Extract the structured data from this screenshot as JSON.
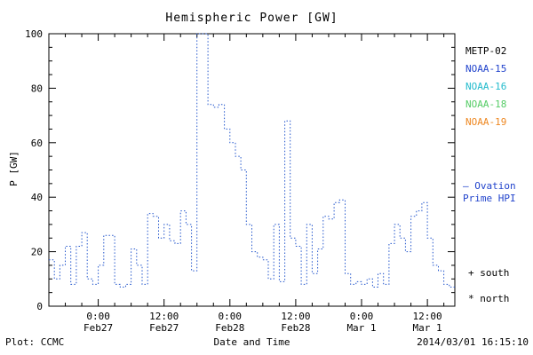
{
  "title": "Hemispheric Power [GW]",
  "axes": {
    "ylabel": "P [GW]",
    "xlabel": "Date and Time",
    "y_ticks": [
      0,
      20,
      40,
      60,
      80,
      100
    ]
  },
  "x_ticks": [
    {
      "hour": 9,
      "time": "0:00",
      "date": "Feb27"
    },
    {
      "hour": 21,
      "time": "12:00",
      "date": "Feb27"
    },
    {
      "hour": 33,
      "time": "0:00",
      "date": "Feb28"
    },
    {
      "hour": 45,
      "time": "12:00",
      "date": "Feb28"
    },
    {
      "hour": 57,
      "time": "0:00",
      "date": "Mar 1"
    },
    {
      "hour": 69,
      "time": "12:00",
      "date": "Mar 1"
    }
  ],
  "legend": {
    "items": [
      {
        "label": "METP-02",
        "color": "#000000"
      },
      {
        "label": "NOAA-15",
        "color": "#2244cc"
      },
      {
        "label": "NOAA-16",
        "color": "#22bbcc"
      },
      {
        "label": "NOAA-18",
        "color": "#55cc66"
      },
      {
        "label": "NOAA-19",
        "color": "#ee8822"
      }
    ]
  },
  "annotations": {
    "ovation_line1": "– Ovation",
    "ovation_line2": "Prime HPI",
    "ovation_color": "#2244cc",
    "south_marker": "+ south",
    "north_marker": "* north"
  },
  "footer": {
    "credit": "Plot: CCMC",
    "timestamp": "2014/03/01 16:15:10"
  },
  "chart_data": {
    "type": "line",
    "style": "dotted-step",
    "title": "Hemispheric Power [GW]",
    "xlabel": "Date and Time",
    "ylabel": "P [GW]",
    "ylim": [
      0,
      100
    ],
    "x_range": [
      0,
      74
    ],
    "x_interval_hours": 1,
    "line_color": "#2255cc",
    "y": [
      17,
      10,
      15,
      22,
      8,
      22,
      27,
      10,
      8,
      15,
      26,
      26,
      8,
      7,
      8,
      21,
      15,
      8,
      34,
      33,
      25,
      30,
      24,
      23,
      35,
      30,
      13,
      100,
      100,
      74,
      73,
      74,
      65,
      60,
      55,
      50,
      30,
      20,
      18,
      17,
      10,
      30,
      9,
      68,
      25,
      22,
      8,
      30,
      12,
      21,
      33,
      32,
      38,
      39,
      12,
      8,
      9,
      8,
      10,
      7,
      12,
      8,
      23,
      30,
      25,
      20,
      33,
      35,
      38,
      25,
      15,
      13,
      8,
      7,
      7
    ]
  }
}
